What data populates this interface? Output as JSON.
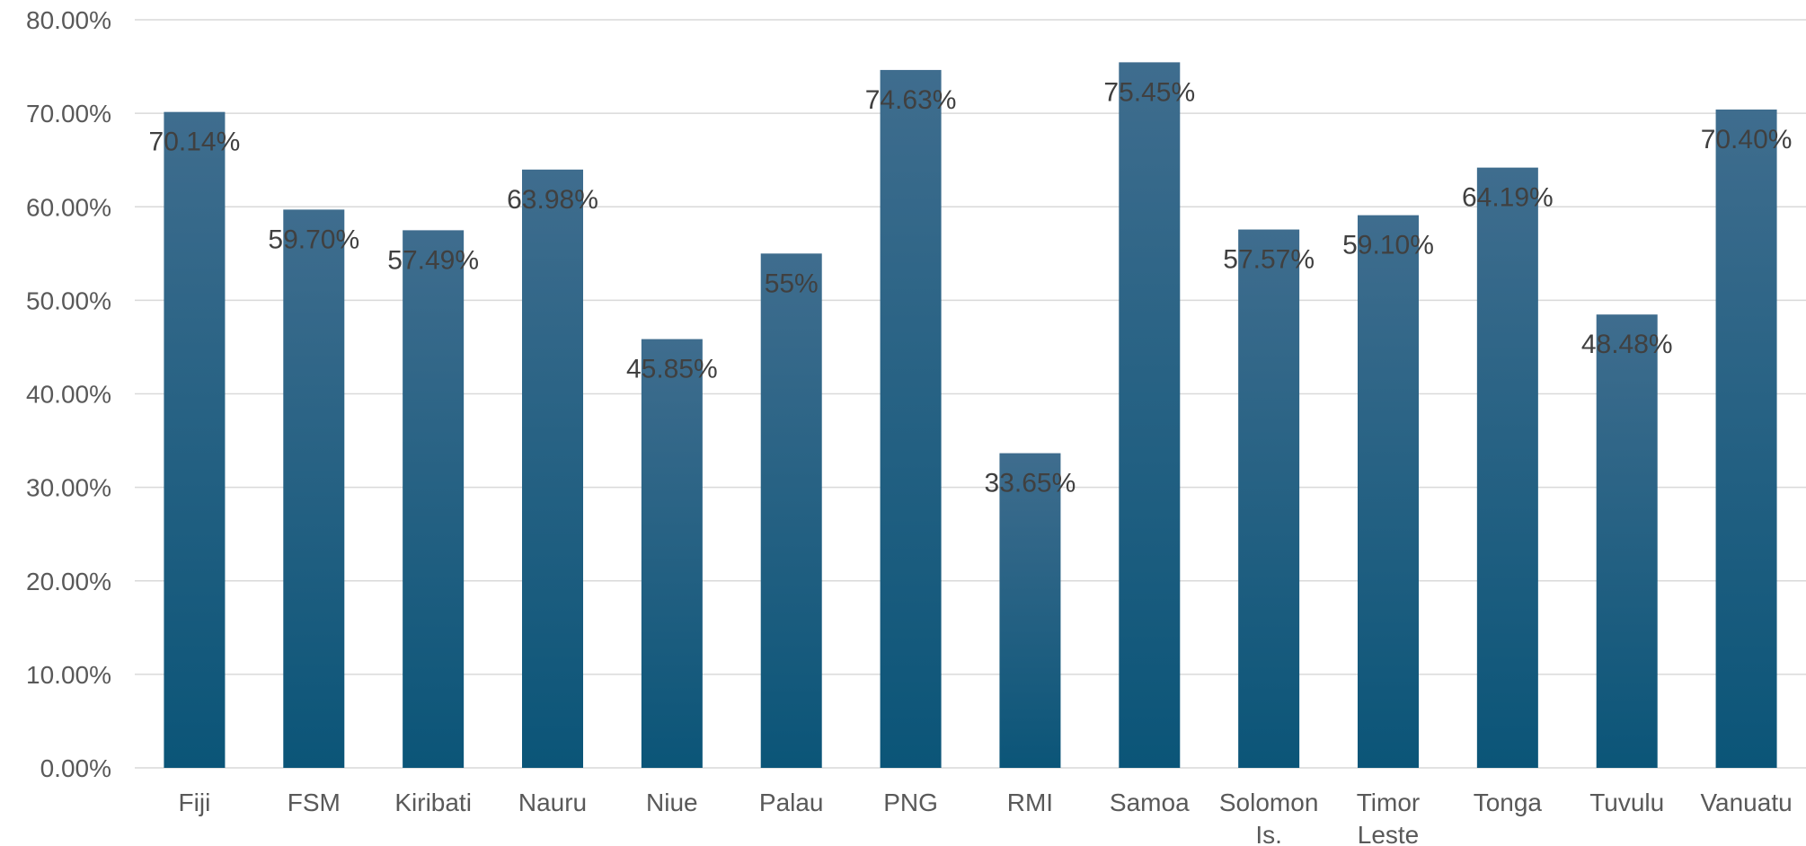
{
  "chart_data": {
    "type": "bar",
    "categories": [
      "Fiji",
      "FSM",
      "Kiribati",
      "Nauru",
      "Niue",
      "Palau",
      "PNG",
      "RMI",
      "Samoa",
      "Solomon Is.",
      "Timor Leste",
      "Tonga",
      "Tuvulu",
      "Vanuatu"
    ],
    "category_lines": [
      [
        "Fiji"
      ],
      [
        "FSM"
      ],
      [
        "Kiribati"
      ],
      [
        "Nauru"
      ],
      [
        "Niue"
      ],
      [
        "Palau"
      ],
      [
        "PNG"
      ],
      [
        "RMI"
      ],
      [
        "Samoa"
      ],
      [
        "Solomon",
        "Is."
      ],
      [
        "Timor",
        "Leste"
      ],
      [
        "Tonga"
      ],
      [
        "Tuvulu"
      ],
      [
        "Vanuatu"
      ]
    ],
    "values": [
      70.14,
      59.7,
      57.49,
      63.98,
      45.85,
      55,
      74.63,
      33.65,
      75.45,
      57.57,
      59.1,
      64.19,
      48.48,
      70.4
    ],
    "data_labels": [
      "70.14%",
      "59.70%",
      "57.49%",
      "63.98%",
      "45.85%",
      "55%",
      "74.63%",
      "33.65%",
      "75.45%",
      "57.57%",
      "59.10%",
      "64.19%",
      "48.48%",
      "70.40%"
    ],
    "yticks": [
      0,
      10,
      20,
      30,
      40,
      50,
      60,
      70,
      80
    ],
    "ytick_labels": [
      "0.00%",
      "10.00%",
      "20.00%",
      "30.00%",
      "40.00%",
      "50.00%",
      "60.00%",
      "70.00%",
      "80.00%"
    ],
    "ylim": [
      0,
      80
    ],
    "title": "",
    "xlabel": "",
    "ylabel": "",
    "grid": true,
    "legend": "none",
    "bar_color_top": "#3f6d8e",
    "bar_color_bottom": "#0b5578"
  }
}
